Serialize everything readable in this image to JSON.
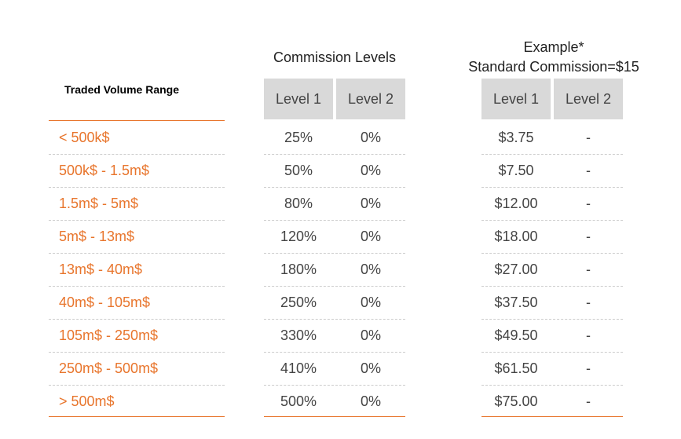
{
  "headers": {
    "range": "Traded Volume Range",
    "commission": "Commission Levels",
    "example_line1": "Example*",
    "example_line2": "Standard Commission=$15",
    "level1": "Level 1",
    "level2": "Level 2",
    "ex_level1": "Level 1",
    "ex_level2": "Level 2"
  },
  "rows": [
    {
      "range": "< 500k$",
      "level1": "25%",
      "level2": "0%",
      "ex_level1": "$3.75",
      "ex_level2": "-"
    },
    {
      "range": "500k$  - 1.5m$",
      "level1": "50%",
      "level2": "0%",
      "ex_level1": "$7.50",
      "ex_level2": "-"
    },
    {
      "range": "1.5m$  - 5m$",
      "level1": "80%",
      "level2": "0%",
      "ex_level1": "$12.00",
      "ex_level2": "-"
    },
    {
      "range": "5m$  - 13m$",
      "level1": "120%",
      "level2": "0%",
      "ex_level1": "$18.00",
      "ex_level2": "-"
    },
    {
      "range": "13m$  - 40m$",
      "level1": "180%",
      "level2": "0%",
      "ex_level1": "$27.00",
      "ex_level2": "-"
    },
    {
      "range": "40m$  - 105m$",
      "level1": "250%",
      "level2": "0%",
      "ex_level1": "$37.50",
      "ex_level2": "-"
    },
    {
      "range": "105m$   - 250m$",
      "level1": "330%",
      "level2": "0%",
      "ex_level1": "$49.50",
      "ex_level2": "-"
    },
    {
      "range": "250m$  - 500m$",
      "level1": "410%",
      "level2": "0%",
      "ex_level1": "$61.50",
      "ex_level2": "-"
    },
    {
      "range": "> 500m$",
      "level1": "500%",
      "level2": "0%",
      "ex_level1": "$75.00",
      "ex_level2": "-"
    }
  ],
  "colors": {
    "accent": "#e8752c",
    "header_bg": "#d9d9d9",
    "text": "#444444"
  }
}
